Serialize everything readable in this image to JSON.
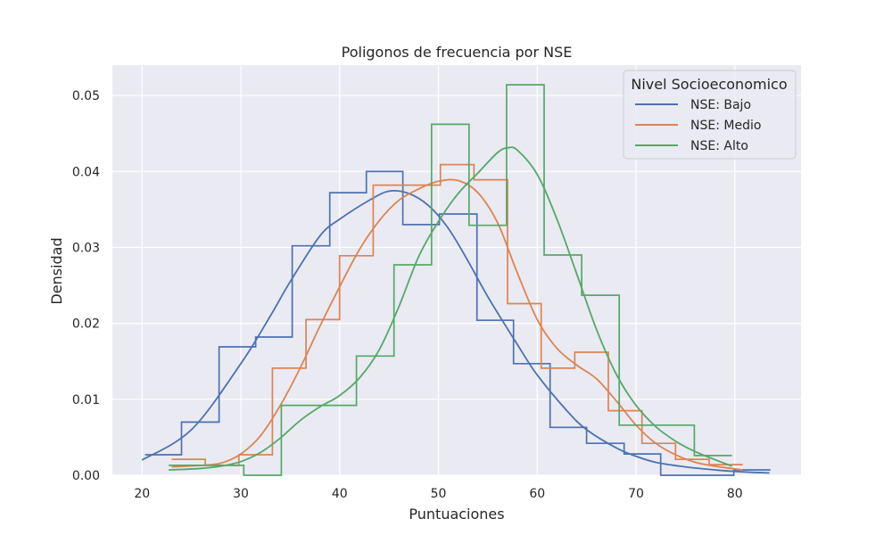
{
  "chart_data": {
    "type": "line",
    "title": "Poligonos de frecuencia por NSE",
    "xlabel": "Puntuaciones",
    "ylabel": "Densidad",
    "xlim": [
      17.0,
      86.7
    ],
    "ylim": [
      0.0,
      0.054
    ],
    "xticks": [
      20,
      30,
      40,
      50,
      60,
      70,
      80
    ],
    "yticks": [
      0.0,
      0.01,
      0.02,
      0.03,
      0.04,
      0.05
    ],
    "xtick_labels": [
      "20",
      "30",
      "40",
      "50",
      "60",
      "70",
      "80"
    ],
    "ytick_labels": [
      "0.00",
      "0.01",
      "0.02",
      "0.03",
      "0.04",
      "0.05"
    ],
    "grid": true,
    "legend": {
      "title": "Nivel Socioeconomico",
      "position": "top-right"
    },
    "series": [
      {
        "name": "NSE: Bajo",
        "color": "#4c72b0",
        "histogram": {
          "edges": [
            20.3,
            24.0,
            27.8,
            31.5,
            35.2,
            39.0,
            42.7,
            46.4,
            50.1,
            53.9,
            57.6,
            61.3,
            65.0,
            68.8,
            72.5,
            76.2,
            79.9,
            83.6
          ],
          "density": [
            0.0027,
            0.007,
            0.0169,
            0.0182,
            0.0302,
            0.0372,
            0.04,
            0.033,
            0.0344,
            0.0204,
            0.0147,
            0.0063,
            0.0042,
            0.0028,
            0.0,
            0.0,
            0.0007
          ]
        },
        "kde": {
          "x": [
            20,
            25,
            30,
            33,
            35,
            38,
            40,
            43,
            45,
            47,
            49,
            51,
            53,
            55,
            58,
            60,
            63,
            65,
            68,
            70,
            72,
            75,
            78,
            80,
            83.5
          ],
          "y": [
            0.002,
            0.006,
            0.0147,
            0.021,
            0.0255,
            0.0315,
            0.0337,
            0.0362,
            0.0374,
            0.0371,
            0.0355,
            0.0325,
            0.0282,
            0.0235,
            0.0172,
            0.0132,
            0.0085,
            0.006,
            0.0036,
            0.0025,
            0.0017,
            0.0011,
            0.0007,
            0.0005,
            0.0003
          ]
        }
      },
      {
        "name": "NSE: Medio",
        "color": "#dd8452",
        "histogram": {
          "edges": [
            23.0,
            26.4,
            29.8,
            33.2,
            36.6,
            40.0,
            43.4,
            46.8,
            50.2,
            53.6,
            57.0,
            60.4,
            63.8,
            67.2,
            70.6,
            74.0,
            77.4,
            80.8
          ],
          "density": [
            0.0021,
            0.0013,
            0.0027,
            0.0141,
            0.0205,
            0.0289,
            0.0382,
            0.0382,
            0.0409,
            0.0389,
            0.0226,
            0.0141,
            0.0162,
            0.0085,
            0.0042,
            0.0021,
            0.0014
          ]
        },
        "kde": {
          "x": [
            23,
            26,
            28,
            30,
            32,
            34,
            36,
            38,
            40,
            42,
            44,
            46,
            48,
            50,
            52,
            54,
            56,
            58,
            60,
            62,
            64,
            66,
            68,
            70,
            72,
            74,
            76,
            78,
            80.8
          ],
          "y": [
            0.0011,
            0.0013,
            0.0016,
            0.0028,
            0.0052,
            0.0092,
            0.0141,
            0.0196,
            0.0248,
            0.0297,
            0.0335,
            0.0362,
            0.0377,
            0.0387,
            0.0388,
            0.0372,
            0.0332,
            0.0266,
            0.0205,
            0.0167,
            0.0145,
            0.0127,
            0.0098,
            0.0066,
            0.0042,
            0.0027,
            0.0017,
            0.0012,
            0.0007
          ]
        }
      },
      {
        "name": "NSE: Alto",
        "color": "#55a868",
        "histogram": {
          "edges": [
            22.7,
            26.5,
            30.3,
            34.1,
            37.9,
            41.7,
            45.5,
            49.3,
            53.1,
            56.9,
            60.7,
            64.5,
            68.3,
            72.1,
            75.9,
            79.7
          ],
          "density": [
            0.0013,
            0.0013,
            0.0,
            0.0092,
            0.0092,
            0.0157,
            0.0277,
            0.0462,
            0.0329,
            0.0514,
            0.029,
            0.0237,
            0.0066,
            0.0066,
            0.0026
          ]
        },
        "kde": {
          "x": [
            22.7,
            26,
            28,
            30,
            32,
            34,
            36,
            38,
            40,
            42,
            44,
            46,
            48,
            50,
            52,
            54,
            56,
            57,
            58,
            60,
            62,
            64,
            66,
            68,
            70,
            72,
            74,
            76,
            79.7
          ],
          "y": [
            0.0007,
            0.0009,
            0.0012,
            0.0018,
            0.003,
            0.0049,
            0.0072,
            0.009,
            0.0105,
            0.0128,
            0.0165,
            0.0222,
            0.0288,
            0.0334,
            0.0371,
            0.0398,
            0.0425,
            0.0431,
            0.0428,
            0.0396,
            0.0337,
            0.0265,
            0.0192,
            0.0133,
            0.0092,
            0.0064,
            0.0045,
            0.0031,
            0.0012
          ]
        }
      }
    ]
  }
}
